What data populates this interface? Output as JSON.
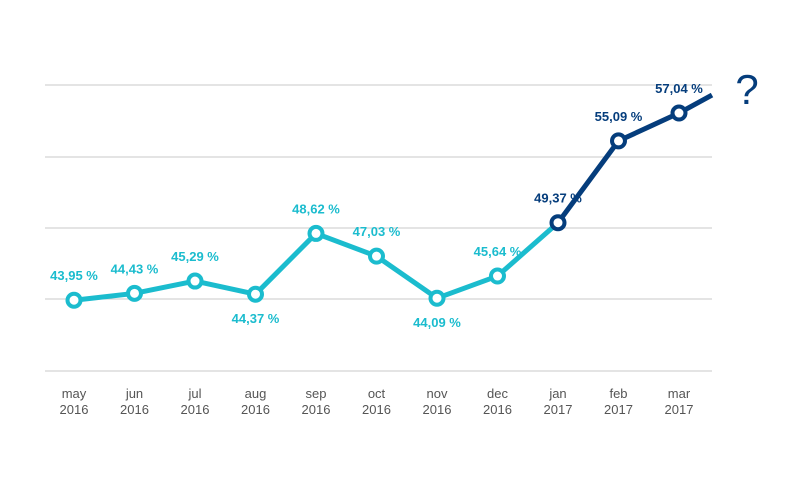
{
  "chart_data": {
    "type": "line",
    "title": "",
    "xlabel": "",
    "ylabel": "",
    "ylim": [
      39,
      59
    ],
    "grid": true,
    "colors": {
      "history": "#1bbcce",
      "recent": "#053d7c",
      "grid": "#c8c8c8",
      "tick_text": "#555555"
    },
    "categories": [
      [
        "may",
        "2016"
      ],
      [
        "jun",
        "2016"
      ],
      [
        "jul",
        "2016"
      ],
      [
        "aug",
        "2016"
      ],
      [
        "sep",
        "2016"
      ],
      [
        "oct",
        "2016"
      ],
      [
        "nov",
        "2016"
      ],
      [
        "dec",
        "2016"
      ],
      [
        "jan",
        "2017"
      ],
      [
        "feb",
        "2017"
      ],
      [
        "mar",
        "2017"
      ]
    ],
    "values": [
      43.95,
      44.43,
      45.29,
      44.37,
      48.62,
      47.03,
      44.09,
      45.64,
      49.37,
      55.09,
      57.04
    ],
    "labels": [
      "43,95 %",
      "44,43 %",
      "45,29 %",
      "44,37 %",
      "48,62 %",
      "47,03 %",
      "44,09 %",
      "45,64 %",
      "49,37 %",
      "55,09 %",
      "57,04 %"
    ],
    "label_side": [
      "above",
      "above",
      "above",
      "below",
      "above",
      "above",
      "below",
      "above",
      "above",
      "above",
      "above"
    ],
    "highlight_from_index": 8,
    "extension": {
      "value": 58.3,
      "symbol": "?"
    }
  }
}
